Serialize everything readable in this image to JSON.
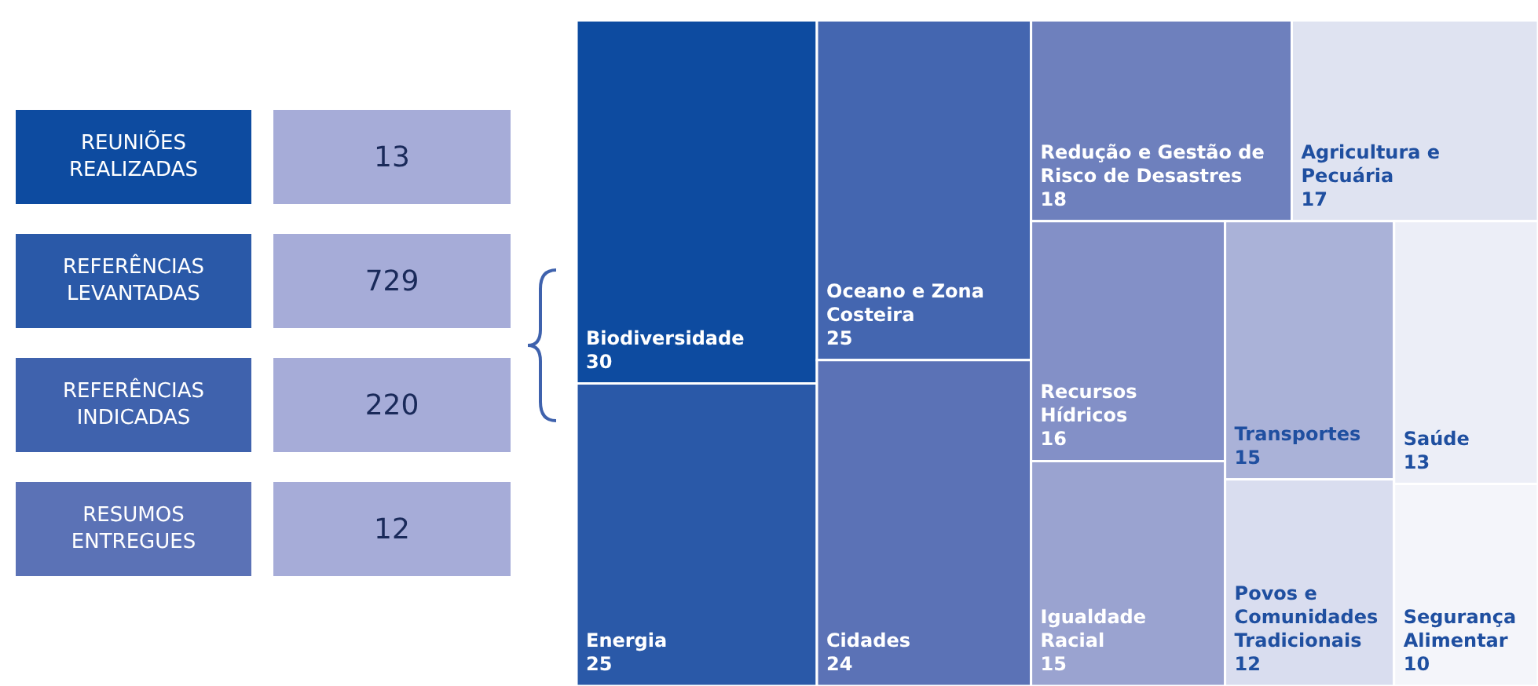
{
  "chart_data": [
    {
      "type": "other",
      "categories": [
        "REUNIÕES REALIZADAS",
        "REFERÊNCIAS LEVANTADAS",
        "REFERÊNCIAS INDICADAS",
        "RESUMOS ENTREGUES"
      ],
      "values": [
        13,
        729,
        220,
        12
      ],
      "data_labels": true,
      "color": "#a6acd8"
    },
    {
      "type": "other",
      "categories": [
        "Biodiversidade",
        "Energia",
        "Oceano e Zona Costeira",
        "Cidades",
        "Redução e Gestão de Risco de Desastres",
        "Agricultura e Pecuária",
        "Recursos Hídricos",
        "Igualdade Racial",
        "Transportes",
        "Povos e Comunidades Tradicionais",
        "Saúde",
        "Segurança Alimentar"
      ],
      "values": [
        30,
        25,
        25,
        24,
        18,
        17,
        16,
        15,
        15,
        12,
        13,
        10
      ],
      "data_labels": true,
      "colors": [
        "#0d4ba0",
        "#2a59a8",
        "#4466b0",
        "#5b72b6",
        "#6e80bd",
        "#dfe3f1",
        "#8390c7",
        "#9aa3d0",
        "#aab2d8",
        "#d9ddef",
        "#eceef7",
        "#f4f5fa"
      ]
    }
  ]
}
